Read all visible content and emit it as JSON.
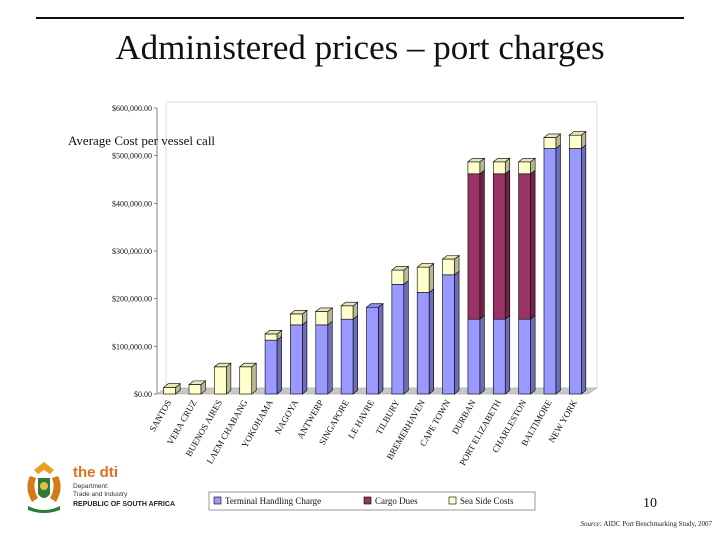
{
  "slide": {
    "title": "Administered prices – port charges",
    "page_number": "10",
    "source_label": "Source:",
    "source_text": "AIDC Port Benchmarking Study, 2007"
  },
  "logo": {
    "brand": "the dti",
    "line1": "Department:",
    "line2": "Trade and Industry",
    "line3": "REPUBLIC OF SOUTH AFRICA"
  },
  "chart_data": {
    "type": "bar",
    "stacked": true,
    "title": "Average Cost per vessel call",
    "xlabel": "",
    "ylabel": "",
    "ylim": [
      0,
      600000
    ],
    "yticks": [
      "$0.00",
      "$100,000.00",
      "$200,000.00",
      "$300,000.00",
      "$400,000.00",
      "$500,000.00",
      "$600,000.00"
    ],
    "grid": false,
    "legend_position": "bottom",
    "categories": [
      "SANTOS",
      "VERA CRUZ",
      "BUENOS AIRES",
      "LAEM CHABANG",
      "YOKOHAMA",
      "NAGOYA",
      "ANTWERP",
      "SINGAPORE",
      "LE HAVRE",
      "TILBURY",
      "BREMERHAVEN",
      "CAPE TOWN",
      "DURBAN",
      "PORT ELIZABETH",
      "CHARLESTON",
      "BALTIMORE",
      "NEW YORK"
    ],
    "series": [
      {
        "name": "Terminal Handling Charge",
        "color": "#9999ff",
        "values": [
          0,
          0,
          0,
          0,
          113000,
          145000,
          145000,
          157000,
          182000,
          230000,
          213000,
          250000,
          157000,
          157000,
          157000,
          515000,
          515000
        ]
      },
      {
        "name": "Cargo Dues",
        "color": "#993366",
        "values": [
          0,
          0,
          0,
          0,
          0,
          0,
          0,
          0,
          0,
          0,
          0,
          0,
          305000,
          305000,
          305000,
          0,
          0
        ]
      },
      {
        "name": "Sea Side Costs",
        "color": "#ffffcc",
        "values": [
          14000,
          20000,
          57000,
          57000,
          13000,
          23000,
          28000,
          28000,
          0,
          30000,
          53000,
          33000,
          25000,
          25000,
          25000,
          23000,
          28000
        ]
      }
    ]
  }
}
